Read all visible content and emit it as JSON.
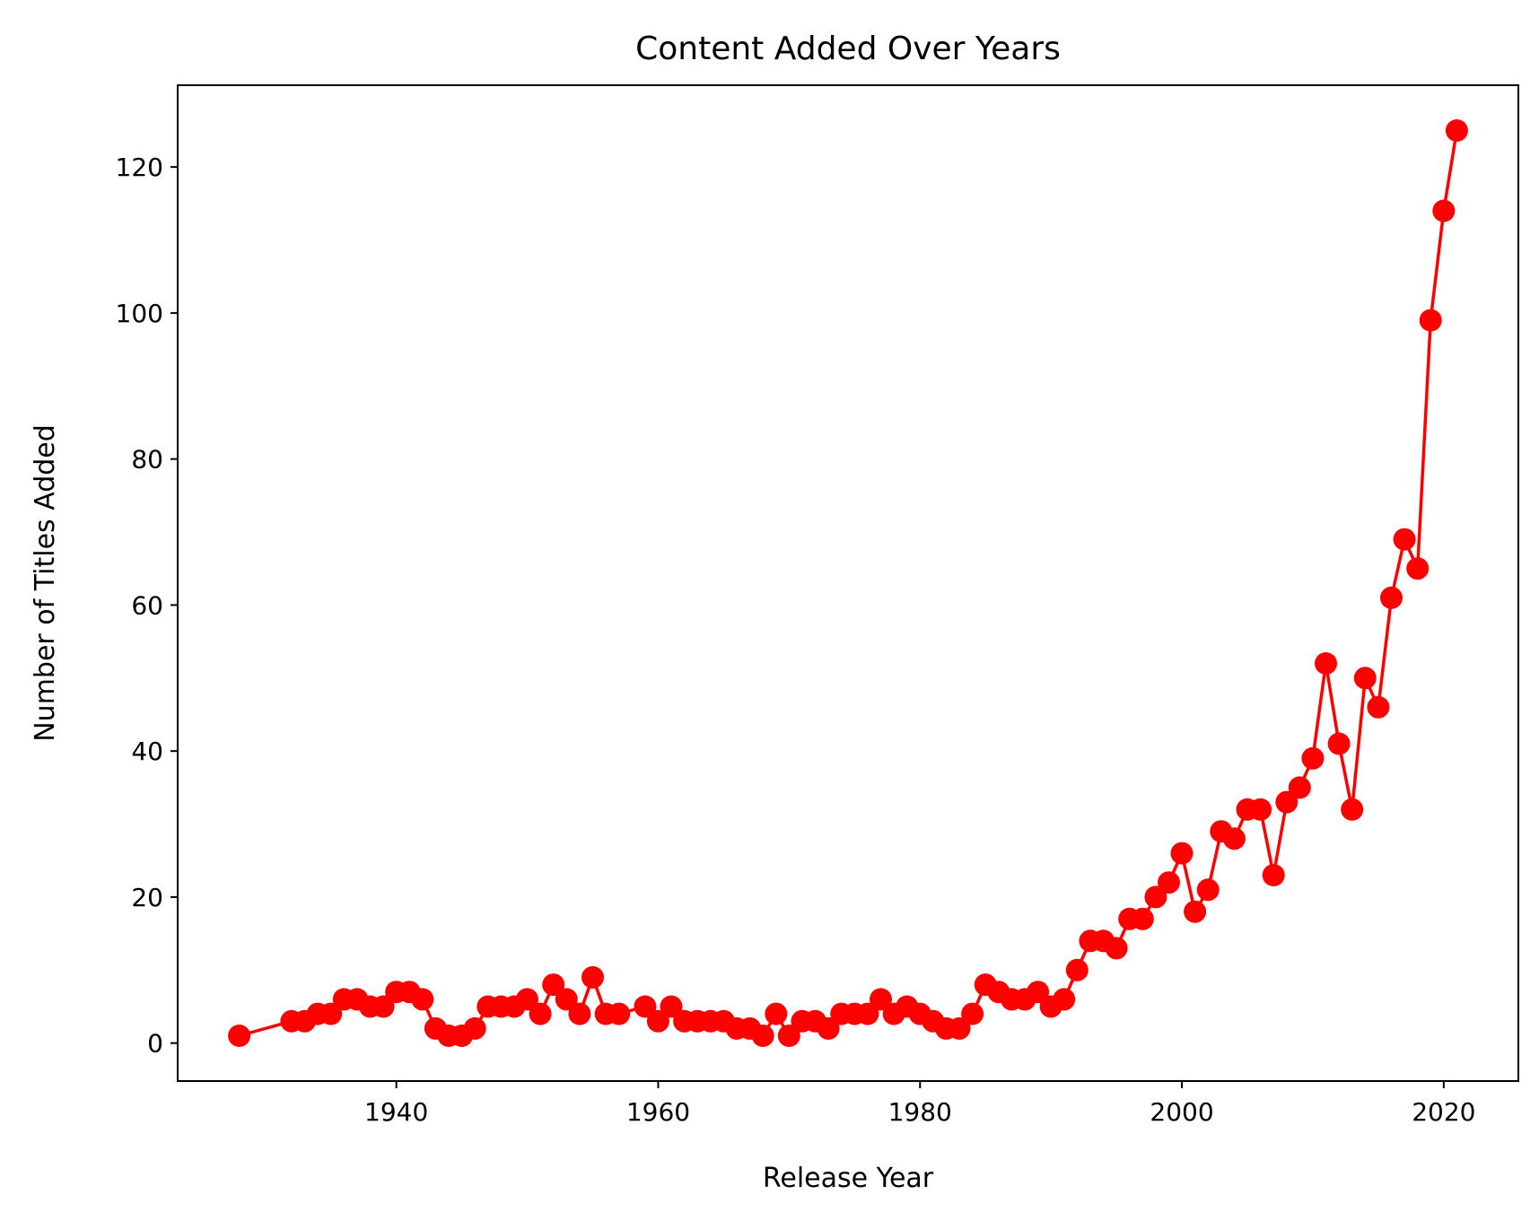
{
  "chart_data": {
    "type": "line",
    "title": "Content Added Over Years",
    "xlabel": "Release Year",
    "ylabel": "Number of Titles Added",
    "xlim": [
      1923.3,
      2025.7
    ],
    "ylim": [
      -5.2,
      131.2
    ],
    "x_ticks": [
      1940,
      1960,
      1980,
      2000,
      2020
    ],
    "y_ticks": [
      0,
      20,
      40,
      60,
      80,
      100,
      120
    ],
    "grid": false,
    "series": [
      {
        "name": "Titles Added",
        "color": "#ff0000",
        "marker": "circle",
        "x": [
          1928,
          1932,
          1933,
          1934,
          1935,
          1936,
          1937,
          1938,
          1939,
          1940,
          1941,
          1942,
          1943,
          1944,
          1945,
          1946,
          1947,
          1948,
          1949,
          1950,
          1951,
          1952,
          1953,
          1954,
          1955,
          1956,
          1957,
          1959,
          1960,
          1961,
          1962,
          1963,
          1964,
          1965,
          1966,
          1967,
          1968,
          1969,
          1970,
          1971,
          1972,
          1973,
          1974,
          1975,
          1976,
          1977,
          1978,
          1979,
          1980,
          1981,
          1982,
          1983,
          1984,
          1985,
          1986,
          1987,
          1988,
          1989,
          1990,
          1991,
          1992,
          1993,
          1994,
          1995,
          1996,
          1997,
          1998,
          1999,
          2000,
          2001,
          2002,
          2003,
          2004,
          2005,
          2006,
          2007,
          2008,
          2009,
          2010,
          2011,
          2012,
          2013,
          2014,
          2015,
          2016,
          2017,
          2018,
          2019,
          2020,
          2021
        ],
        "y": [
          1,
          3,
          3,
          4,
          4,
          6,
          6,
          5,
          5,
          7,
          7,
          6,
          2,
          1,
          1,
          2,
          5,
          5,
          5,
          6,
          4,
          8,
          6,
          4,
          9,
          4,
          4,
          5,
          3,
          5,
          3,
          3,
          3,
          3,
          2,
          2,
          1,
          4,
          1,
          3,
          3,
          2,
          4,
          4,
          4,
          6,
          4,
          5,
          4,
          3,
          2,
          2,
          4,
          8,
          7,
          6,
          6,
          7,
          5,
          6,
          10,
          14,
          14,
          13,
          17,
          17,
          20,
          22,
          26,
          18,
          21,
          29,
          28,
          32,
          32,
          23,
          33,
          35,
          39,
          52,
          41,
          32,
          50,
          46,
          61,
          69,
          65,
          99,
          114,
          125
        ]
      }
    ]
  }
}
